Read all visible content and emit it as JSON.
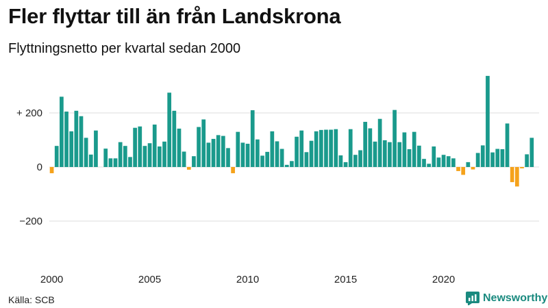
{
  "header": {
    "title": "Fler flyttar till än från Landskrona",
    "subtitle": "Flyttningsnetto per kvartal sedan 2000"
  },
  "footer": {
    "source": "Källa: SCB",
    "brand": "Newsworthy"
  },
  "colors": {
    "positive": "#1a9a8c",
    "negative": "#f5a21b",
    "grid": "#dddddd",
    "brand": "#1a8a7f"
  },
  "icons": {
    "brand": "newsworthy-logo-icon"
  },
  "chart_data": {
    "type": "bar",
    "title": "Fler flyttar till än från Landskrona",
    "subtitle": "Flyttningsnetto per kvartal sedan 2000",
    "xlabel": "",
    "ylabel": "",
    "ylim": [
      -300,
      350
    ],
    "grid": true,
    "legend": "none",
    "y_ticks": [
      {
        "value": 200,
        "label": "+ 200"
      },
      {
        "value": 0,
        "label": "0"
      },
      {
        "value": -200,
        "label": "−200"
      }
    ],
    "x_ticks": [
      "2000",
      "2005",
      "2010",
      "2015",
      "2020"
    ],
    "categories": [
      "2000K1",
      "2000K2",
      "2000K3",
      "2000K4",
      "2001K1",
      "2001K2",
      "2001K3",
      "2001K4",
      "2002K1",
      "2002K2",
      "2002K3",
      "2002K4",
      "2003K1",
      "2003K2",
      "2003K3",
      "2003K4",
      "2004K1",
      "2004K2",
      "2004K3",
      "2004K4",
      "2005K1",
      "2005K2",
      "2005K3",
      "2005K4",
      "2006K1",
      "2006K2",
      "2006K3",
      "2006K4",
      "2007K1",
      "2007K2",
      "2007K3",
      "2007K4",
      "2008K1",
      "2008K2",
      "2008K3",
      "2008K4",
      "2009K1",
      "2009K2",
      "2009K3",
      "2009K4",
      "2010K1",
      "2010K2",
      "2010K3",
      "2010K4",
      "2011K1",
      "2011K2",
      "2011K3",
      "2011K4",
      "2012K1",
      "2012K2",
      "2012K3",
      "2012K4",
      "2013K1",
      "2013K2",
      "2013K3",
      "2013K4",
      "2014K1",
      "2014K2",
      "2014K3",
      "2014K4",
      "2015K1",
      "2015K2",
      "2015K3",
      "2015K4",
      "2016K1",
      "2016K2",
      "2016K3",
      "2016K4",
      "2017K1",
      "2017K2",
      "2017K3",
      "2017K4",
      "2018K1",
      "2018K2",
      "2018K3",
      "2018K4",
      "2019K1",
      "2019K2",
      "2019K3",
      "2019K4",
      "2020K1",
      "2020K2",
      "2020K3",
      "2020K4",
      "2021K1",
      "2021K2",
      "2021K3",
      "2021K4",
      "2022K1",
      "2022K2",
      "2022K3",
      "2022K4",
      "2023K1",
      "2023K2",
      "2023K3",
      "2023K4",
      "2024K1",
      "2024K2",
      "2024K3",
      "2024K4"
    ],
    "values": [
      -23,
      78,
      260,
      205,
      132,
      208,
      188,
      108,
      46,
      135,
      0,
      68,
      32,
      32,
      92,
      78,
      37,
      145,
      150,
      78,
      88,
      157,
      76,
      94,
      275,
      208,
      142,
      57,
      -10,
      40,
      148,
      176,
      90,
      104,
      118,
      115,
      70,
      -23,
      130,
      90,
      86,
      210,
      102,
      42,
      56,
      132,
      95,
      67,
      8,
      22,
      112,
      135,
      55,
      97,
      132,
      137,
      138,
      138,
      140,
      43,
      18,
      140,
      45,
      62,
      167,
      143,
      94,
      178,
      99,
      92,
      211,
      92,
      128,
      66,
      130,
      79,
      30,
      12,
      76,
      35,
      45,
      40,
      32,
      -15,
      -29,
      18,
      -9,
      52,
      80,
      337,
      54,
      67,
      66,
      161,
      -56,
      -72,
      -5,
      47,
      108,
      0
    ]
  }
}
